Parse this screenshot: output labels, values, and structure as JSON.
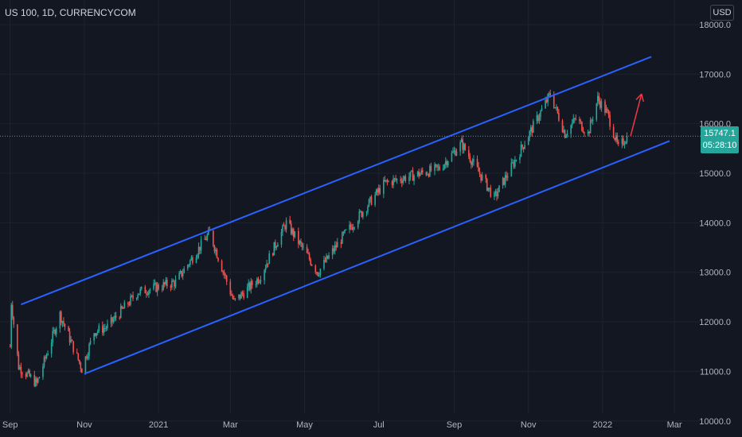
{
  "header": {
    "symbol": "US 100, 1D, CURRENCYCOM",
    "currency_button": "USD"
  },
  "price_badge": {
    "price": "15747.1",
    "countdown": "05:28:10"
  },
  "colors": {
    "background": "#131722",
    "up": "#26a69a",
    "down": "#ef5350",
    "channel": "#2962ff",
    "arrow": "#f23645",
    "current_line": "#26a69a"
  },
  "chart_data": {
    "type": "candlestick",
    "ylim": [
      9900,
      18400
    ],
    "y_ticks": [
      "10000.0",
      "11000.0",
      "12000.0",
      "13000.0",
      "14000.0",
      "15000.0",
      "16000.0",
      "17000.0",
      "18000.0"
    ],
    "x_ticks": [
      "Sep",
      "Nov",
      "2021",
      "Mar",
      "May",
      "Jul",
      "Sep",
      "Nov",
      "2022",
      "Mar"
    ],
    "current_price": 15747.1,
    "price_path": [
      {
        "date": "2020-09-01",
        "close": 11500
      },
      {
        "date": "2020-09-02",
        "close": 12400
      },
      {
        "date": "2020-09-08",
        "close": 11100
      },
      {
        "date": "2020-09-23",
        "close": 10750
      },
      {
        "date": "2020-10-12",
        "close": 12150
      },
      {
        "date": "2020-10-30",
        "close": 11050
      },
      {
        "date": "2020-11-09",
        "close": 11800
      },
      {
        "date": "2020-11-20",
        "close": 11900
      },
      {
        "date": "2020-12-15",
        "close": 12600
      },
      {
        "date": "2021-01-15",
        "close": 12800
      },
      {
        "date": "2021-02-12",
        "close": 13800
      },
      {
        "date": "2021-03-04",
        "close": 12400
      },
      {
        "date": "2021-03-25",
        "close": 12900
      },
      {
        "date": "2021-04-16",
        "close": 14000
      },
      {
        "date": "2021-05-12",
        "close": 13000
      },
      {
        "date": "2021-06-01",
        "close": 13700
      },
      {
        "date": "2021-07-06",
        "close": 14800
      },
      {
        "date": "2021-08-20",
        "close": 15100
      },
      {
        "date": "2021-09-07",
        "close": 15600
      },
      {
        "date": "2021-10-04",
        "close": 14500
      },
      {
        "date": "2021-10-22",
        "close": 15300
      },
      {
        "date": "2021-11-19",
        "close": 16600
      },
      {
        "date": "2021-12-01",
        "close": 15800
      },
      {
        "date": "2021-12-10",
        "close": 16100
      },
      {
        "date": "2021-12-20",
        "close": 15800
      },
      {
        "date": "2021-12-28",
        "close": 16500
      },
      {
        "date": "2022-01-05",
        "close": 16200
      },
      {
        "date": "2022-01-14",
        "close": 15500
      },
      {
        "date": "2022-01-21",
        "close": 15747.1
      }
    ],
    "channel": {
      "upper": [
        {
          "date": "2020-09-10",
          "price": 12350
        },
        {
          "date": "2022-02-10",
          "price": 17350
        }
      ],
      "lower": [
        {
          "date": "2020-11-01",
          "price": 10950
        },
        {
          "date": "2022-02-25",
          "price": 15650
        }
      ]
    },
    "projection_arrow": [
      {
        "date": "2022-01-24",
        "price": 15750
      },
      {
        "date": "2022-02-02",
        "price": 16600
      }
    ]
  }
}
